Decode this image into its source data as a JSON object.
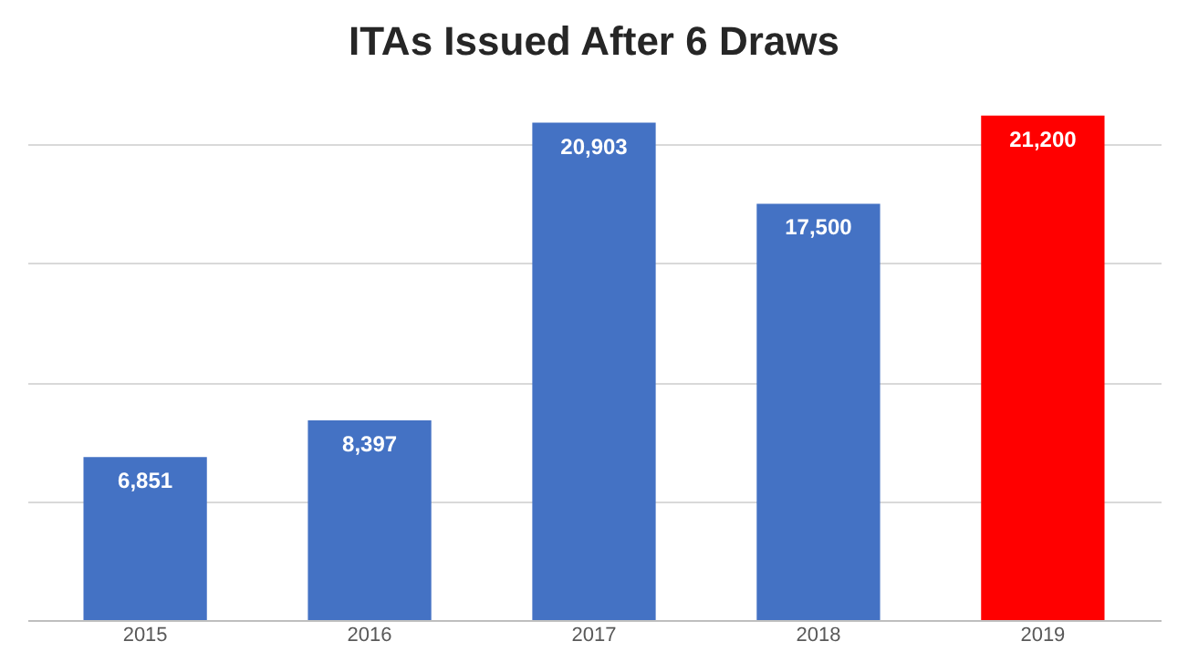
{
  "chart_data": {
    "type": "bar",
    "title": "ITAs Issued After 6 Draws",
    "categories": [
      "2015",
      "2016",
      "2017",
      "2018",
      "2019"
    ],
    "values": [
      6851,
      8397,
      20903,
      17500,
      21200
    ],
    "colors": [
      "#4472c4",
      "#4472c4",
      "#4472c4",
      "#4472c4",
      "#ff0000"
    ],
    "value_labels": [
      "6,851",
      "8,397",
      "20,903",
      "17,500",
      "21,200"
    ],
    "yticks": [
      {
        "value": 0,
        "label": null
      },
      {
        "value": 5000,
        "label": null
      },
      {
        "value": 10000,
        "label": null
      },
      {
        "value": 15000,
        "label": null
      },
      {
        "value": 20000,
        "label": null
      }
    ],
    "tick_labels": "x",
    "grid": "y"
  }
}
